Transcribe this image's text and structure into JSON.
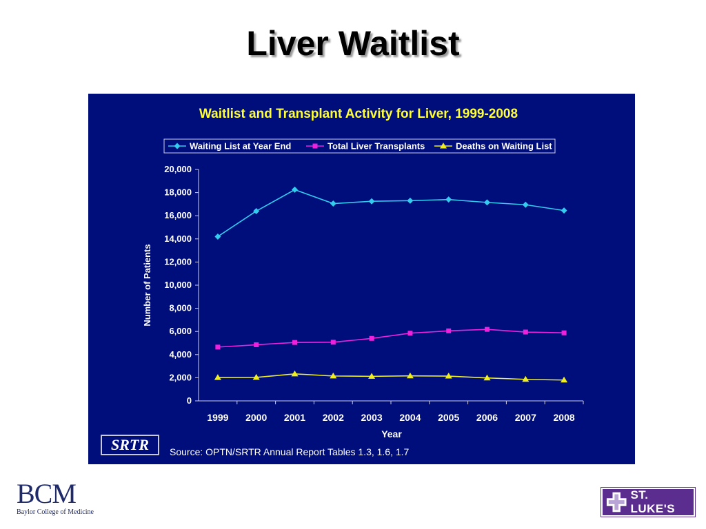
{
  "slide": {
    "title": "Liver Waitlist",
    "source": "Source: OPTN/SRTR Annual Report Tables 1.3, 1.6, 1.7",
    "srtr_label": "SRTR",
    "bcm_mark": "BCM",
    "bcm_name": "Baylor College of Medicine",
    "stlukes_name": "ST. LUKE'S"
  },
  "colors": {
    "panel_bg": "#000e7c",
    "title_yellow": "#ffff33",
    "waitlist": "#33ccee",
    "transplants": "#ee22dd",
    "deaths": "#eeee22"
  },
  "chart_data": {
    "type": "line",
    "title": "Waitlist and Transplant Activity for Liver, 1999-2008",
    "xlabel": "Year",
    "ylabel": "Number of Patients",
    "x": [
      "1999",
      "2000",
      "2001",
      "2002",
      "2003",
      "2004",
      "2005",
      "2006",
      "2007",
      "2008"
    ],
    "ylim": [
      0,
      20000
    ],
    "yticks": [
      0,
      2000,
      4000,
      6000,
      8000,
      10000,
      12000,
      14000,
      16000,
      18000,
      20000
    ],
    "ytick_labels": [
      "0",
      "2,000",
      "4,000",
      "6,000",
      "8,000",
      "10,000",
      "12,000",
      "14,000",
      "16,000",
      "18,000",
      "20,000"
    ],
    "legend": "top",
    "grid": false,
    "series": [
      {
        "name": "Waiting List at Year End",
        "marker": "diamond",
        "color": "#33ccee",
        "values": [
          14200,
          16400,
          18250,
          17050,
          17250,
          17300,
          17400,
          17150,
          16950,
          16450
        ]
      },
      {
        "name": "Total Liver Transplants",
        "marker": "square",
        "color": "#ee22dd",
        "values": [
          4650,
          4850,
          5050,
          5070,
          5400,
          5850,
          6050,
          6180,
          5950,
          5880
        ]
      },
      {
        "name": "Deaths on Waiting List",
        "marker": "triangle",
        "color": "#eeee22",
        "values": [
          2020,
          2030,
          2330,
          2150,
          2120,
          2160,
          2140,
          1980,
          1860,
          1800
        ]
      }
    ]
  }
}
